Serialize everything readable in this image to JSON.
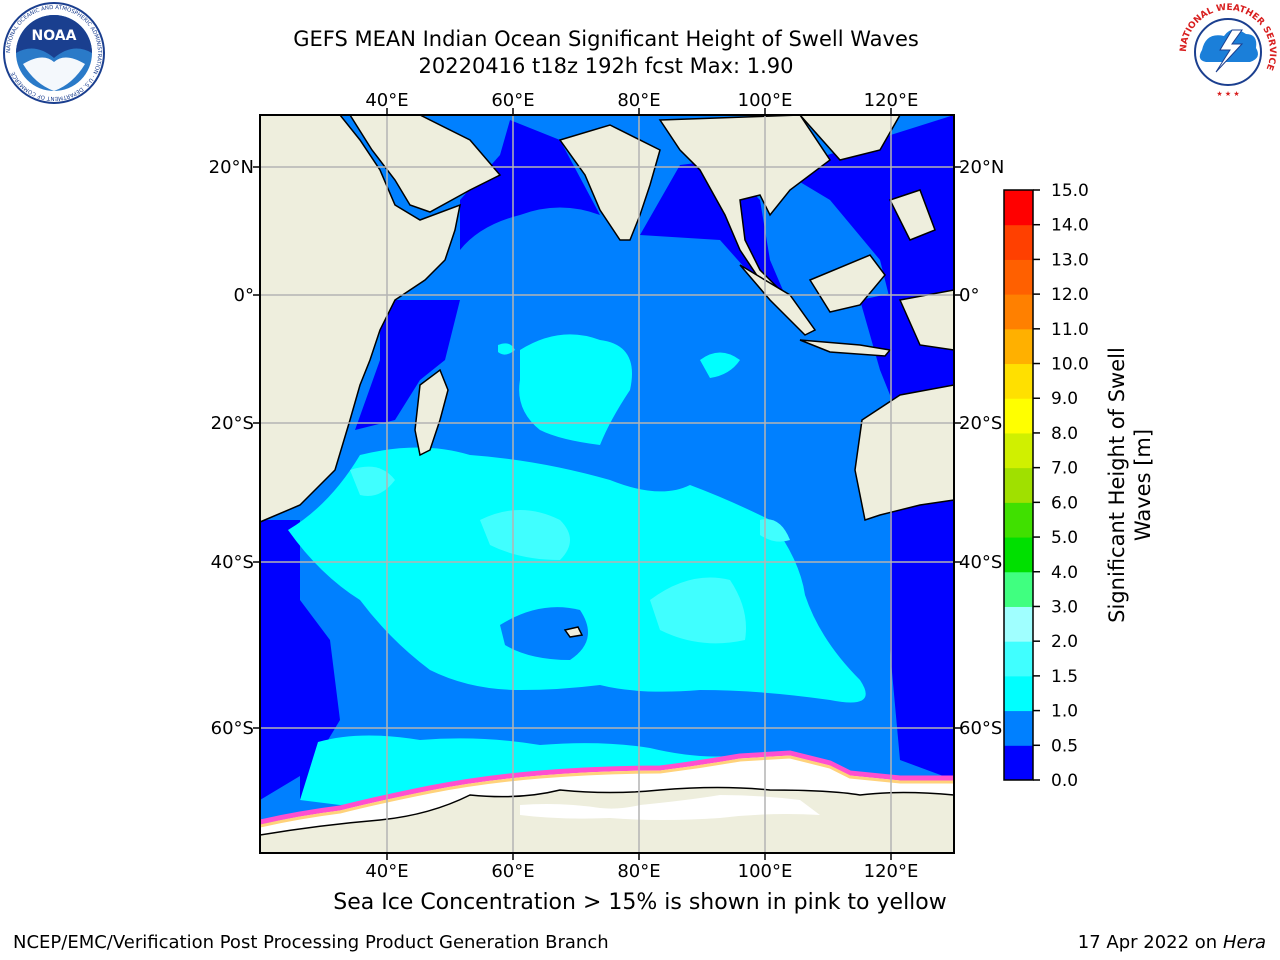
{
  "header": {
    "title_line1": "GEFS MEAN Indian Ocean Significant Height of Swell Waves",
    "title_line2": "20220416 t18z 192h fcst   Max: 1.90"
  },
  "logos": {
    "noaa_text": "NOAA",
    "noaa_ring_text": "NATIONAL OCEANIC AND ATMOSPHERIC ADMINISTRATION · U.S. DEPARTMENT OF COMMERCE",
    "nws_ring_text": "NATIONAL WEATHER SERVICE"
  },
  "map": {
    "lon_labels": [
      "40°E",
      "60°E",
      "80°E",
      "100°E",
      "120°E"
    ],
    "lat_labels": [
      "20°N",
      "0°",
      "20°S",
      "40°S",
      "60°S"
    ],
    "colors": {
      "land": "#eeeedd",
      "ice": "#ffffff",
      "grid": "#b4b4b4",
      "ice_edge": [
        "#ff4fd0",
        "#ffb0e0",
        "#ffd27a",
        "#f5a623"
      ]
    }
  },
  "colorbar": {
    "label_line1": "Significant Height of Swell",
    "label_line2": "Waves [m]",
    "ticks": [
      "0.0",
      "0.5",
      "1.0",
      "1.5",
      "2.0",
      "3.0",
      "4.0",
      "5.0",
      "6.0",
      "7.0",
      "8.0",
      "9.0",
      "10.0",
      "11.0",
      "12.0",
      "13.0",
      "14.0",
      "15.0"
    ],
    "colors": [
      "#0000ff",
      "#0080ff",
      "#00ffff",
      "#40ffff",
      "#a0ffff",
      "#40ff80",
      "#00e000",
      "#40e000",
      "#a0e000",
      "#d0f000",
      "#ffff00",
      "#ffe000",
      "#ffb000",
      "#ff8000",
      "#ff6000",
      "#ff4000",
      "#ff0000"
    ]
  },
  "caption": "Sea Ice Concentration > 15% is shown in pink to yellow",
  "footer": {
    "left": "NCEP/EMC/Verification Post Processing Product Generation Branch",
    "right_prefix": "17 Apr 2022 on ",
    "right_host": "Hera"
  }
}
